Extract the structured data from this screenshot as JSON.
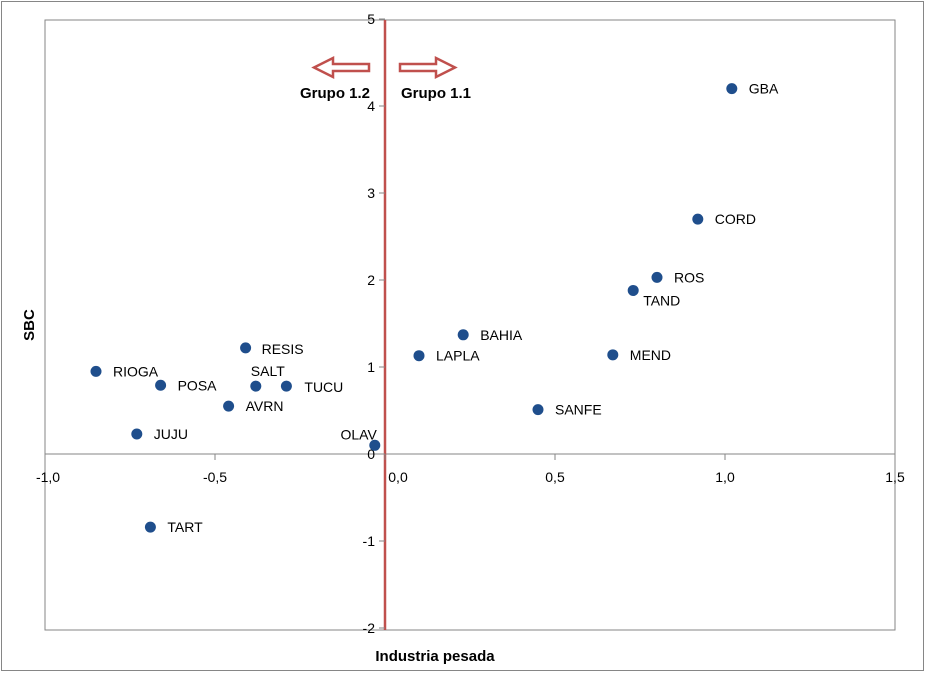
{
  "chart_data": {
    "type": "scatter",
    "xlabel": "Industria pesada",
    "ylabel": "SBC",
    "xlim": [
      -1.0,
      1.5
    ],
    "ylim": [
      -2,
      5
    ],
    "x_ticks": [
      -1.0,
      -0.5,
      0.0,
      0.5,
      1.0,
      1.5
    ],
    "x_tick_labels": [
      "-1,0",
      "-0,5",
      "0,0",
      "0,5",
      "1,0",
      "1,5"
    ],
    "y_ticks": [
      -2,
      -1,
      0,
      1,
      2,
      3,
      4,
      5
    ],
    "y_tick_labels": [
      "-2",
      "-1",
      "0",
      "1",
      "2",
      "3",
      "4",
      "5"
    ],
    "grid": false,
    "marker_color": "#1F4E8C",
    "divider_color": "#C0504D",
    "points": [
      {
        "label": "GBA",
        "x": 1.02,
        "y": 4.2
      },
      {
        "label": "CORD",
        "x": 0.92,
        "y": 2.7
      },
      {
        "label": "ROS",
        "x": 0.8,
        "y": 2.03
      },
      {
        "label": "TAND",
        "x": 0.73,
        "y": 1.88
      },
      {
        "label": "BAHIA",
        "x": 0.23,
        "y": 1.37
      },
      {
        "label": "LAPLA",
        "x": 0.1,
        "y": 1.13
      },
      {
        "label": "MEND",
        "x": 0.67,
        "y": 1.14
      },
      {
        "label": "SANFE",
        "x": 0.45,
        "y": 0.51
      },
      {
        "label": "OLAV",
        "x": -0.03,
        "y": 0.1
      },
      {
        "label": "RESIS",
        "x": -0.41,
        "y": 1.22
      },
      {
        "label": "SALT",
        "x": -0.38,
        "y": 0.78
      },
      {
        "label": "TUCU",
        "x": -0.29,
        "y": 0.78
      },
      {
        "label": "RIOGA",
        "x": -0.85,
        "y": 0.95
      },
      {
        "label": "POSA",
        "x": -0.66,
        "y": 0.79
      },
      {
        "label": "AVRN",
        "x": -0.46,
        "y": 0.55
      },
      {
        "label": "JUJU",
        "x": -0.73,
        "y": 0.23
      },
      {
        "label": "TART",
        "x": -0.69,
        "y": -0.84
      }
    ],
    "annotations": [
      {
        "text": "Grupo 1.2",
        "direction": "left"
      },
      {
        "text": "Grupo 1.1",
        "direction": "right"
      }
    ]
  }
}
